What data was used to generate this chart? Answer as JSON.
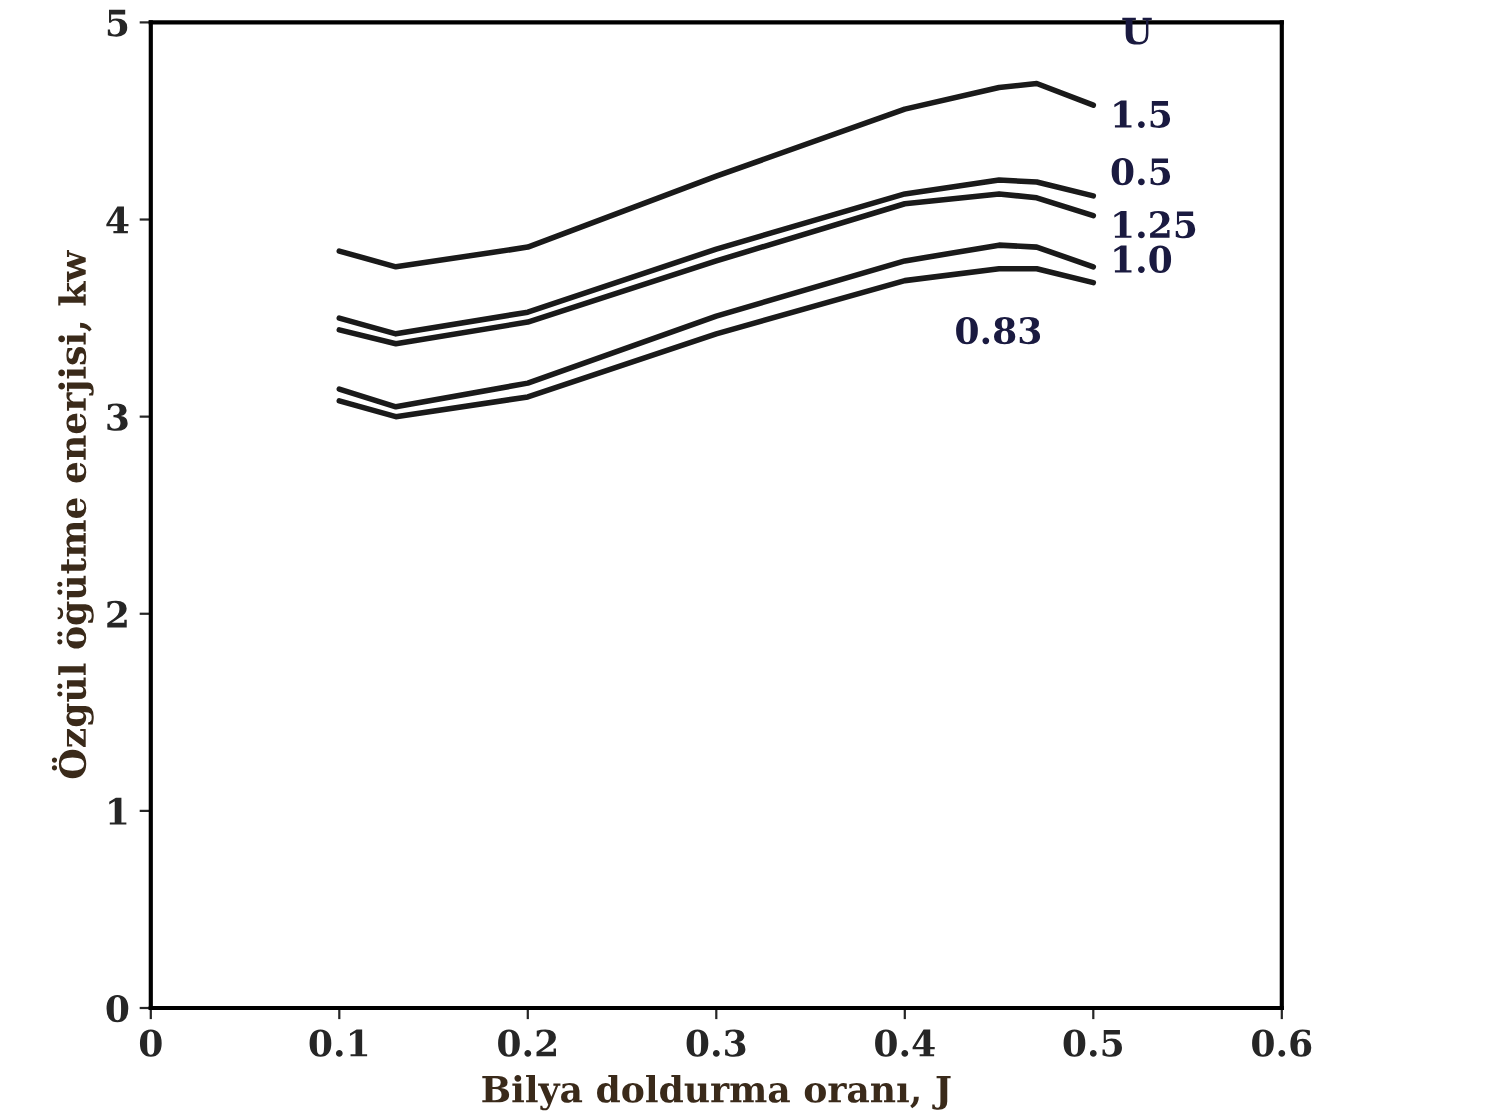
{
  "chart_data": {
    "type": "line",
    "xlabel": "Bilya doldurma oranı, J",
    "ylabel": "Özgül öğütme enerjisi, kw",
    "legend_title": "U",
    "x": [
      0.1,
      0.13,
      0.2,
      0.3,
      0.4,
      0.45,
      0.47,
      0.5
    ],
    "series": [
      {
        "name": "1.5",
        "color": "#1a1a1a",
        "values": [
          3.84,
          3.76,
          3.86,
          4.22,
          4.56,
          4.67,
          4.69,
          4.58
        ]
      },
      {
        "name": "0.5",
        "color": "#1a1a1a",
        "values": [
          3.5,
          3.42,
          3.53,
          3.85,
          4.13,
          4.2,
          4.19,
          4.12
        ]
      },
      {
        "name": "1.25",
        "color": "#1a1a1a",
        "values": [
          3.44,
          3.37,
          3.48,
          3.79,
          4.08,
          4.13,
          4.11,
          4.02
        ]
      },
      {
        "name": "1.0",
        "color": "#1a1a1a",
        "values": [
          3.14,
          3.05,
          3.17,
          3.51,
          3.79,
          3.87,
          3.86,
          3.76
        ]
      },
      {
        "name": "0.83",
        "color": "#1a1a1a",
        "values": [
          3.08,
          3.0,
          3.1,
          3.42,
          3.69,
          3.75,
          3.75,
          3.68
        ]
      }
    ],
    "xlim": [
      0,
      0.6
    ],
    "xticks": [
      0,
      0.1,
      0.2,
      0.3,
      0.4,
      0.5,
      0.6
    ],
    "ylim": [
      0,
      5
    ],
    "yticks": [
      0,
      1,
      2,
      3,
      4,
      5
    ],
    "grid": false,
    "legend": false,
    "marker": "none",
    "line_style": "solid"
  }
}
